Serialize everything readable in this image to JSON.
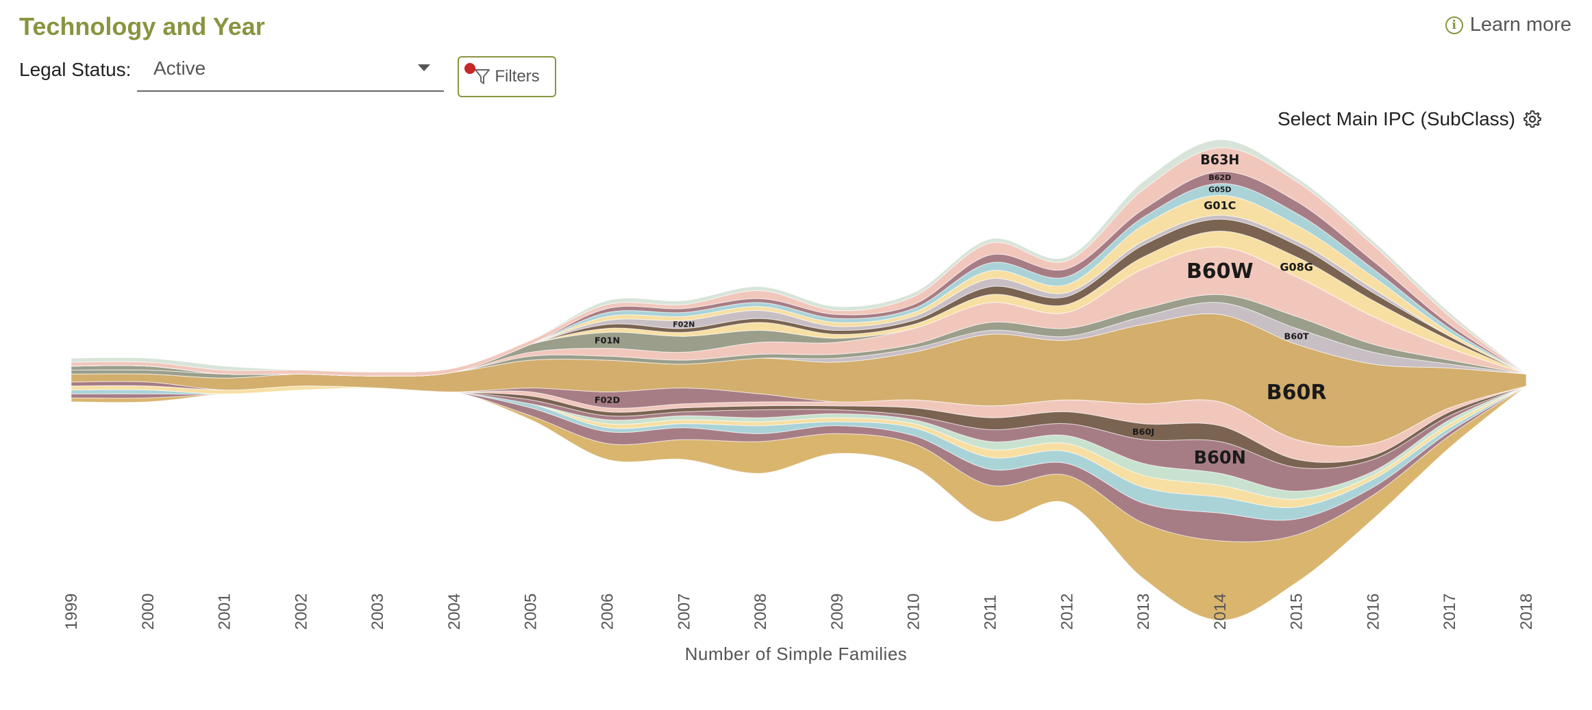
{
  "header": {
    "title": "Technology and Year",
    "learn_more": "Learn more"
  },
  "controls": {
    "legal_status_label": "Legal Status:",
    "legal_status_value": "Active",
    "filters_label": "Filters",
    "ipc_select_label": "Select Main IPC (SubClass)"
  },
  "icons": {
    "info": "info-icon",
    "dropdown": "chevron-down-icon",
    "filter": "filter-icon",
    "settings": "gear-icon"
  },
  "chart_data": {
    "type": "area",
    "layout": "streamgraph",
    "title": "",
    "xlabel": "Number of Simple Families",
    "ylabel": "",
    "x": [
      1999,
      2000,
      2001,
      2002,
      2003,
      2004,
      2005,
      2006,
      2007,
      2008,
      2009,
      2010,
      2011,
      2012,
      2013,
      2014,
      2015,
      2016,
      2017,
      2018
    ],
    "series": [
      {
        "name": "",
        "color": "#d9b56e",
        "values": [
          1,
          1,
          0,
          0,
          0,
          0,
          1,
          4,
          5,
          8,
          5,
          6,
          9,
          7,
          14,
          20,
          12,
          6,
          3,
          0
        ]
      },
      {
        "name": "",
        "color": "#a77d85",
        "values": [
          1,
          1,
          0,
          0,
          0,
          0,
          2,
          3,
          3,
          2,
          2,
          2,
          4,
          3,
          5,
          7,
          4,
          2,
          1,
          0
        ]
      },
      {
        "name": "",
        "color": "#aad3d8",
        "values": [
          1,
          1,
          0,
          0,
          0,
          0,
          1,
          1,
          1,
          2,
          1,
          2,
          3,
          3,
          4,
          4,
          3,
          2,
          1,
          0
        ]
      },
      {
        "name": "",
        "color": "#f7dfa3",
        "values": [
          1,
          1,
          1,
          1,
          0,
          0,
          0,
          1,
          1,
          1,
          1,
          1,
          2,
          2,
          3,
          3,
          2,
          1,
          1,
          0
        ]
      },
      {
        "name": "",
        "color": "#c9e2cf",
        "values": [
          0,
          0,
          0,
          0,
          0,
          0,
          0,
          1,
          1,
          1,
          1,
          1,
          2,
          2,
          3,
          3,
          2,
          1,
          1,
          0
        ]
      },
      {
        "name": "B60N",
        "color": "#a77d85",
        "values": [
          0,
          0,
          0,
          0,
          0,
          0,
          1,
          1,
          1,
          2,
          1,
          1,
          3,
          3,
          6,
          8,
          6,
          3,
          1,
          0
        ]
      },
      {
        "name": "B60J",
        "color": "#7a6351",
        "values": [
          0,
          0,
          0,
          0,
          0,
          0,
          1,
          1,
          1,
          1,
          1,
          2,
          3,
          3,
          4,
          4,
          2,
          1,
          1,
          0
        ]
      },
      {
        "name": "",
        "color": "#f1c7bc",
        "values": [
          0,
          0,
          0,
          0,
          0,
          0,
          1,
          1,
          1,
          1,
          1,
          2,
          3,
          3,
          5,
          6,
          5,
          3,
          1,
          0
        ]
      },
      {
        "name": "F02D",
        "color": "#a77d85",
        "values": [
          1,
          1,
          0,
          0,
          0,
          0,
          1,
          4,
          4,
          2,
          0,
          0,
          0,
          0,
          0,
          0,
          0,
          0,
          0,
          0
        ]
      },
      {
        "name": "B60R",
        "color": "#d3ae6d",
        "values": [
          2,
          2,
          3,
          3,
          3,
          5,
          7,
          8,
          6,
          9,
          10,
          12,
          18,
          15,
          20,
          22,
          24,
          20,
          10,
          3
        ]
      },
      {
        "name": "B60T",
        "color": "#c8bfc4",
        "values": [
          0,
          0,
          0,
          0,
          0,
          0,
          0,
          0,
          0,
          0,
          1,
          1,
          1,
          1,
          2,
          3,
          4,
          3,
          1,
          0
        ]
      },
      {
        "name": "",
        "color": "#9a9e8b",
        "values": [
          1,
          1,
          1,
          0,
          0,
          0,
          1,
          1,
          1,
          1,
          1,
          1,
          2,
          2,
          2,
          2,
          3,
          2,
          1,
          0
        ]
      },
      {
        "name": "B60W",
        "color": "#f1c7bc",
        "values": [
          0,
          0,
          0,
          0,
          0,
          0,
          1,
          2,
          2,
          3,
          3,
          4,
          5,
          4,
          10,
          12,
          10,
          7,
          3,
          0
        ]
      },
      {
        "name": "F01N",
        "color": "#9a9e8b",
        "values": [
          1,
          1,
          0,
          0,
          0,
          0,
          2,
          4,
          4,
          3,
          1,
          0,
          0,
          0,
          0,
          0,
          0,
          0,
          0,
          0
        ]
      },
      {
        "name": "G08G",
        "color": "#f7dfa3",
        "values": [
          0,
          0,
          0,
          0,
          0,
          0,
          0,
          1,
          1,
          2,
          1,
          1,
          2,
          2,
          3,
          4,
          5,
          4,
          2,
          0
        ]
      },
      {
        "name": "",
        "color": "#7a6351",
        "values": [
          0,
          0,
          0,
          0,
          0,
          0,
          0,
          1,
          1,
          1,
          1,
          1,
          2,
          2,
          3,
          3,
          3,
          2,
          1,
          0
        ]
      },
      {
        "name": "F02N",
        "color": "#c8bfc4",
        "values": [
          0,
          0,
          0,
          0,
          0,
          0,
          0,
          1,
          2,
          2,
          1,
          1,
          2,
          1,
          1,
          1,
          1,
          1,
          0,
          0
        ]
      },
      {
        "name": "G01C",
        "color": "#f7dfa3",
        "values": [
          0,
          0,
          0,
          0,
          0,
          0,
          0,
          1,
          1,
          1,
          1,
          1,
          2,
          2,
          4,
          5,
          4,
          3,
          1,
          0
        ]
      },
      {
        "name": "G05D",
        "color": "#aad3d8",
        "values": [
          0,
          0,
          0,
          0,
          0,
          0,
          0,
          1,
          1,
          1,
          1,
          1,
          2,
          2,
          2,
          3,
          3,
          2,
          1,
          0
        ]
      },
      {
        "name": "B62D",
        "color": "#a77d85",
        "values": [
          0,
          0,
          0,
          0,
          0,
          0,
          0,
          1,
          1,
          1,
          1,
          1,
          2,
          2,
          2,
          3,
          3,
          2,
          1,
          0
        ]
      },
      {
        "name": "B63H",
        "color": "#f1c7bc",
        "values": [
          1,
          1,
          1,
          1,
          1,
          1,
          1,
          1,
          1,
          2,
          1,
          2,
          3,
          2,
          5,
          6,
          5,
          4,
          2,
          0
        ]
      },
      {
        "name": "",
        "color": "#d8e4d9",
        "values": [
          1,
          1,
          1,
          0,
          0,
          0,
          0,
          1,
          1,
          1,
          1,
          1,
          1,
          1,
          2,
          2,
          1,
          1,
          1,
          0
        ]
      }
    ]
  }
}
